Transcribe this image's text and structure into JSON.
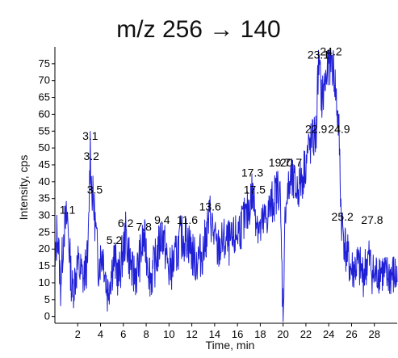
{
  "chart_data": {
    "type": "line",
    "title": "m/z 256 → 140",
    "xlabel": "Time, min",
    "ylabel": "Intensity, cps",
    "xlim": [
      0,
      30
    ],
    "ylim": [
      -2,
      80
    ],
    "xticks": [
      2,
      4,
      6,
      8,
      10,
      12,
      14,
      16,
      18,
      20,
      22,
      24,
      26,
      28
    ],
    "yticks": [
      0,
      5,
      10,
      15,
      20,
      25,
      30,
      35,
      40,
      45,
      50,
      55,
      60,
      65,
      70,
      75
    ],
    "grid": false,
    "series_color": "#1f1fd6",
    "anchors": [
      [
        0.0,
        12
      ],
      [
        0.2,
        28
      ],
      [
        0.5,
        10
      ],
      [
        0.8,
        27
      ],
      [
        1.1,
        30
      ],
      [
        1.5,
        8
      ],
      [
        2.0,
        16
      ],
      [
        2.5,
        12
      ],
      [
        2.9,
        18
      ],
      [
        3.1,
        52
      ],
      [
        3.2,
        40
      ],
      [
        3.5,
        30
      ],
      [
        3.8,
        16
      ],
      [
        4.2,
        20
      ],
      [
        4.6,
        8
      ],
      [
        5.2,
        18
      ],
      [
        5.6,
        12
      ],
      [
        6.2,
        25
      ],
      [
        6.8,
        13
      ],
      [
        7.2,
        14
      ],
      [
        7.8,
        24
      ],
      [
        8.4,
        12
      ],
      [
        8.9,
        18
      ],
      [
        9.4,
        26
      ],
      [
        10.0,
        14
      ],
      [
        10.5,
        17
      ],
      [
        11.0,
        24
      ],
      [
        11.6,
        24
      ],
      [
        12.3,
        17
      ],
      [
        13.0,
        20
      ],
      [
        13.6,
        31
      ],
      [
        14.2,
        20
      ],
      [
        14.8,
        23
      ],
      [
        15.5,
        22
      ],
      [
        16.2,
        27
      ],
      [
        16.8,
        30
      ],
      [
        17.3,
        38
      ],
      [
        17.5,
        33
      ],
      [
        18.0,
        26
      ],
      [
        18.5,
        30
      ],
      [
        19.0,
        34
      ],
      [
        19.7,
        40
      ],
      [
        20.0,
        1
      ],
      [
        20.2,
        34
      ],
      [
        20.7,
        41
      ],
      [
        21.2,
        38
      ],
      [
        21.7,
        42
      ],
      [
        22.2,
        50
      ],
      [
        22.9,
        55
      ],
      [
        23.1,
        77
      ],
      [
        23.4,
        65
      ],
      [
        23.8,
        72
      ],
      [
        24.2,
        78
      ],
      [
        24.5,
        72
      ],
      [
        24.9,
        55
      ],
      [
        25.1,
        30
      ],
      [
        25.5,
        20
      ],
      [
        26.0,
        14
      ],
      [
        26.5,
        16
      ],
      [
        27.0,
        13
      ],
      [
        27.5,
        18
      ],
      [
        28.0,
        12
      ],
      [
        28.5,
        15
      ],
      [
        29.0,
        12
      ],
      [
        29.5,
        13
      ],
      [
        30.0,
        12
      ]
    ],
    "noise_amp": 7,
    "peak_labels": [
      {
        "label": "1.1",
        "x": 1.1,
        "y": 30
      },
      {
        "label": "3.1",
        "x": 3.1,
        "y": 52
      },
      {
        "label": "3.2",
        "x": 3.2,
        "y": 46
      },
      {
        "label": "3.5",
        "x": 3.5,
        "y": 36
      },
      {
        "label": "5.2",
        "x": 5.2,
        "y": 21
      },
      {
        "label": "6.2",
        "x": 6.2,
        "y": 26
      },
      {
        "label": "7.8",
        "x": 7.8,
        "y": 25
      },
      {
        "label": "9.4",
        "x": 9.4,
        "y": 27
      },
      {
        "label": "11.6",
        "x": 11.6,
        "y": 27
      },
      {
        "label": "13.6",
        "x": 13.6,
        "y": 31
      },
      {
        "label": "17.3",
        "x": 17.3,
        "y": 41
      },
      {
        "label": "17.5",
        "x": 17.5,
        "y": 36
      },
      {
        "label": "19.7",
        "x": 19.7,
        "y": 44
      },
      {
        "label": "20.7",
        "x": 20.7,
        "y": 44
      },
      {
        "label": "22.9",
        "x": 22.9,
        "y": 54
      },
      {
        "label": "23.1",
        "x": 23.1,
        "y": 76
      },
      {
        "label": "24.2",
        "x": 24.2,
        "y": 77
      },
      {
        "label": "24.9",
        "x": 24.9,
        "y": 54
      },
      {
        "label": "25.2",
        "x": 25.2,
        "y": 28
      },
      {
        "label": "27.8",
        "x": 27.8,
        "y": 27
      }
    ]
  }
}
